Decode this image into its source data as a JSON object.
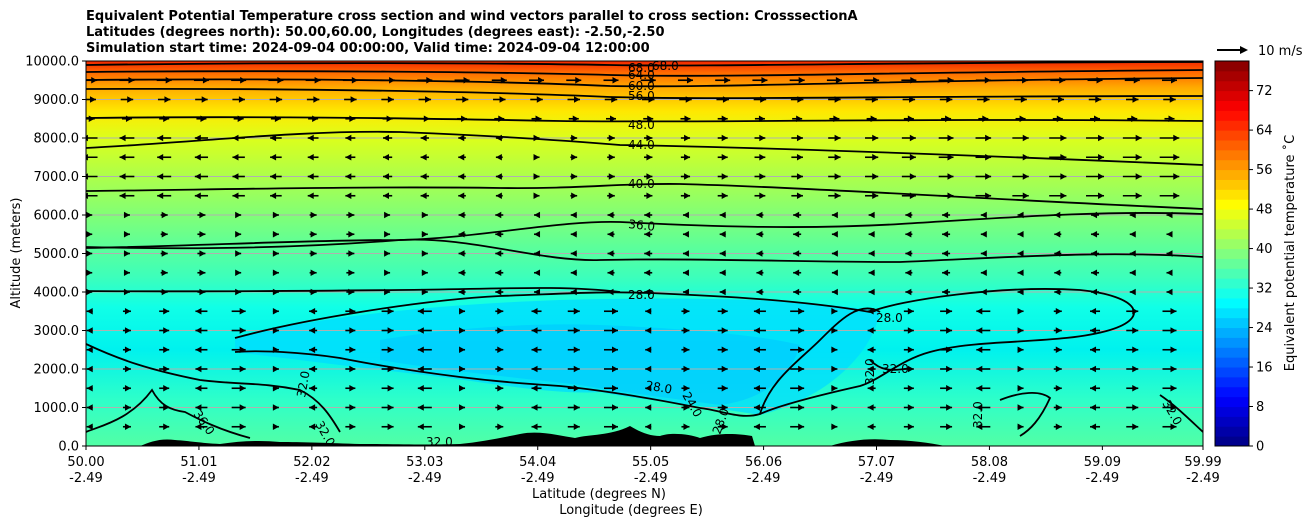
{
  "chart_data": {
    "type": "heatmap",
    "title_lines": [
      "Equivalent Potential Temperature cross section and wind vectors parallel to cross section: CrosssectionA",
      "Latitudes (degrees north): 50.00,60.00, Longitudes (degrees east): -2.50,-2.50",
      "Simulation start time: 2024-09-04 00:00:00, Valid time: 2024-09-04 12:00:00"
    ],
    "ylabel": "Altitude (meters)",
    "xlabel_1": "Latitude (degrees N)",
    "xlabel_2": "Longitude (degrees E)",
    "ylim": [
      0,
      10000
    ],
    "xlim": [
      50.0,
      59.99
    ],
    "y_ticks": [
      0,
      1000,
      2000,
      3000,
      4000,
      5000,
      6000,
      7000,
      8000,
      9000,
      10000
    ],
    "y_tick_labels": [
      "0.0",
      "1000.0",
      "2000.0",
      "3000.0",
      "4000.0",
      "5000.0",
      "6000.0",
      "7000.0",
      "8000.0",
      "9000.0",
      "10000.0"
    ],
    "x_ticks": [
      50.0,
      51.01,
      52.02,
      53.03,
      54.04,
      55.05,
      56.06,
      57.07,
      58.08,
      59.09,
      59.99
    ],
    "x_tick_lat_labels": [
      "50.00",
      "51.01",
      "52.02",
      "53.03",
      "54.04",
      "55.05",
      "56.06",
      "57.07",
      "58.08",
      "59.09",
      "59.99"
    ],
    "x_tick_lon_labels": [
      "-2.49",
      "-2.49",
      "-2.49",
      "-2.49",
      "-2.49",
      "-2.49",
      "-2.49",
      "-2.49",
      "-2.49",
      "-2.49",
      "-2.49"
    ],
    "colorbar": {
      "label": "Equivalent potential temperature ˚C",
      "min": 0,
      "max": 78,
      "ticks": [
        0,
        8,
        16,
        24,
        32,
        40,
        48,
        56,
        64,
        72
      ],
      "tick_labels": [
        "0",
        "8",
        "16",
        "24",
        "32",
        "40",
        "48",
        "56",
        "64",
        "72"
      ]
    },
    "contours": [
      {
        "value": 28,
        "label": "28.0"
      },
      {
        "value": 32,
        "label": "32.0"
      },
      {
        "value": 36,
        "label": "36.0"
      },
      {
        "value": 40,
        "label": "40.0"
      },
      {
        "value": 44,
        "label": "44.0"
      },
      {
        "value": 48,
        "label": "48.0"
      },
      {
        "value": 56,
        "label": "56.0"
      },
      {
        "value": 60,
        "label": "60.0"
      },
      {
        "value": 64,
        "label": "64.0"
      },
      {
        "value": 68,
        "label": "68.0"
      }
    ],
    "inline_contour_labels": [
      "68.0",
      "68.0",
      "64.0",
      "60.0",
      "56.0",
      "48.0",
      "44.0",
      "40.0",
      "36.0",
      "28.0",
      "28.0",
      "32.0",
      "32.0",
      "32.0",
      "32.0",
      "32.0",
      "36.0",
      "32.0",
      "28.0",
      "24.0",
      "28.0",
      "32.0"
    ],
    "level_profile_theta": [
      {
        "alt": 0,
        "theta": 33
      },
      {
        "alt": 1000,
        "theta": 32
      },
      {
        "alt": 2000,
        "theta": 30
      },
      {
        "alt": 3000,
        "theta": 30
      },
      {
        "alt": 4000,
        "theta": 33
      },
      {
        "alt": 5000,
        "theta": 35
      },
      {
        "alt": 6000,
        "theta": 38
      },
      {
        "alt": 7000,
        "theta": 41
      },
      {
        "alt": 8000,
        "theta": 45
      },
      {
        "alt": 9000,
        "theta": 54
      },
      {
        "alt": 9500,
        "theta": 60
      },
      {
        "alt": 10000,
        "theta": 66
      }
    ],
    "wind_key": {
      "speed": 10,
      "label": "10 m/s"
    }
  }
}
